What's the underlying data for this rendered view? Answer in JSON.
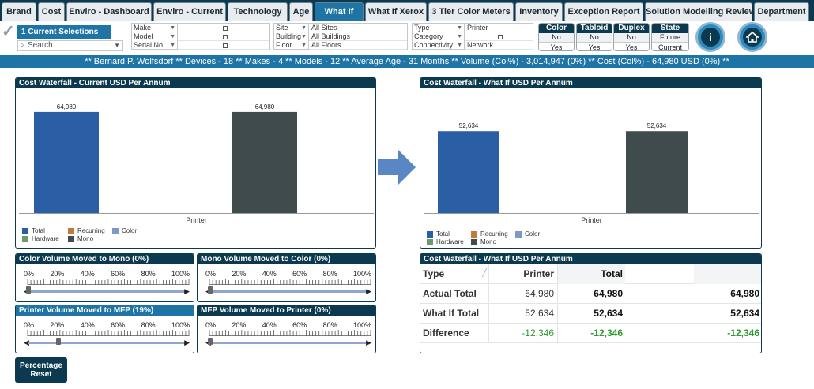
{
  "tabs": [
    {
      "label": "Brand",
      "active": false
    },
    {
      "label": "Cost",
      "active": false
    },
    {
      "label": "Enviro - Dashboard",
      "active": false
    },
    {
      "label": "Enviro - Current",
      "active": false
    },
    {
      "label": "Technology",
      "active": false
    },
    {
      "label": "Age",
      "active": false
    },
    {
      "label": "What If",
      "active": true
    },
    {
      "label": "What If Xerox",
      "active": false
    },
    {
      "label": "3 Tier Color Meters",
      "active": false
    },
    {
      "label": "Inventory",
      "active": false
    },
    {
      "label": "Exception Report",
      "active": false
    },
    {
      "label": "Solution Modelling Review",
      "active": false
    },
    {
      "label": "Department",
      "active": false
    }
  ],
  "selection": {
    "current_selections": "1 Current Selections",
    "search_placeholder": "Search",
    "filters1": [
      {
        "key": "Make",
        "value": ""
      },
      {
        "key": "Model",
        "value": ""
      },
      {
        "key": "Serial No.",
        "value": ""
      }
    ],
    "filters2": [
      {
        "key": "Site",
        "value": "All Sites"
      },
      {
        "key": "Building",
        "value": "All Buildings"
      },
      {
        "key": "Floor",
        "value": "All Floors"
      }
    ],
    "filters3": [
      {
        "key": "Type",
        "value": "Printer"
      },
      {
        "key": "Category",
        "value": ""
      },
      {
        "key": "Connectivity",
        "value": "Network"
      }
    ],
    "toggles": [
      {
        "title": "Color",
        "opt1": "No",
        "opt2": "Yes"
      },
      {
        "title": "Tabloid",
        "opt1": "No",
        "opt2": "Yes"
      },
      {
        "title": "Duplex",
        "opt1": "No",
        "opt2": "Yes"
      },
      {
        "title": "State",
        "opt1": "Future",
        "opt2": "Current"
      }
    ],
    "info_icon": "i"
  },
  "infobar": "** Bernard P. Wolfsdorf ** Devices - 18 ** Makes - 4 ** Models - 12 ** Average Age - 31 Months ** Volume (Col%) - 3,014,947 (0%) ** Cost (Col%) - 64,980 USD (0%) **",
  "chart_data": [
    {
      "type": "bar",
      "title": "Cost Waterfall - Current USD Per Annum",
      "categories": [
        "Printer"
      ],
      "series": [
        {
          "name": "Total",
          "values": [
            64980
          ],
          "labels": [
            "64,980"
          ],
          "color": "#2a5fa6"
        },
        {
          "name": "Mono",
          "values": [
            64980
          ],
          "labels": [
            "64,980"
          ],
          "color": "#3f4b4c"
        }
      ],
      "legend": [
        "Total",
        "Hardware",
        "Recurring",
        "Mono",
        "Color"
      ],
      "legend_colors": [
        "#2a5fa6",
        "#6b9a6b",
        "#c07a3a",
        "#3f4b4c",
        "#8098c4"
      ],
      "xlabel": "Printer",
      "ylim": [
        0,
        70000
      ]
    },
    {
      "type": "bar",
      "title": "Cost Waterfall - What If USD Per Annum",
      "categories": [
        "Printer"
      ],
      "series": [
        {
          "name": "Total",
          "values": [
            52634
          ],
          "labels": [
            "52,634"
          ],
          "color": "#2a5fa6"
        },
        {
          "name": "Mono",
          "values": [
            52634
          ],
          "labels": [
            "52,634"
          ],
          "color": "#3f4b4c"
        }
      ],
      "legend": [
        "Total",
        "Hardware",
        "Recurring",
        "Mono",
        "Color"
      ],
      "legend_colors": [
        "#2a5fa6",
        "#6b9a6b",
        "#c07a3a",
        "#3f4b4c",
        "#8098c4"
      ],
      "xlabel": "Printer",
      "ylim": [
        0,
        70000
      ]
    }
  ],
  "sliders": [
    {
      "title": "Color Volume Moved to Mono (0%)",
      "value_pct": 0
    },
    {
      "title": "Mono Volume Moved to Color (0%)",
      "value_pct": 0
    },
    {
      "title": "Printer Volume Moved to MFP (19%)",
      "value_pct": 19
    },
    {
      "title": "MFP Volume Moved to Printer (0%)",
      "value_pct": 0
    }
  ],
  "slider_ticks": [
    "0%",
    "20%",
    "40%",
    "60%",
    "80%",
    "100%"
  ],
  "reset_button": "Percentage Reset",
  "table": {
    "title": "Cost Waterfall - What If USD Per Annum",
    "header": {
      "c0": "Type",
      "c1": "Printer",
      "c2": "Total"
    },
    "rows": [
      {
        "c0": "Actual Total",
        "c1": "64,980",
        "c2": "64,980",
        "c3": "64,980"
      },
      {
        "c0": "What If Total",
        "c1": "52,634",
        "c2": "52,634",
        "c3": "52,634"
      },
      {
        "c0": "Difference",
        "c1": "-12,346",
        "c2": "-12,346",
        "c3": "-12,346"
      }
    ]
  }
}
